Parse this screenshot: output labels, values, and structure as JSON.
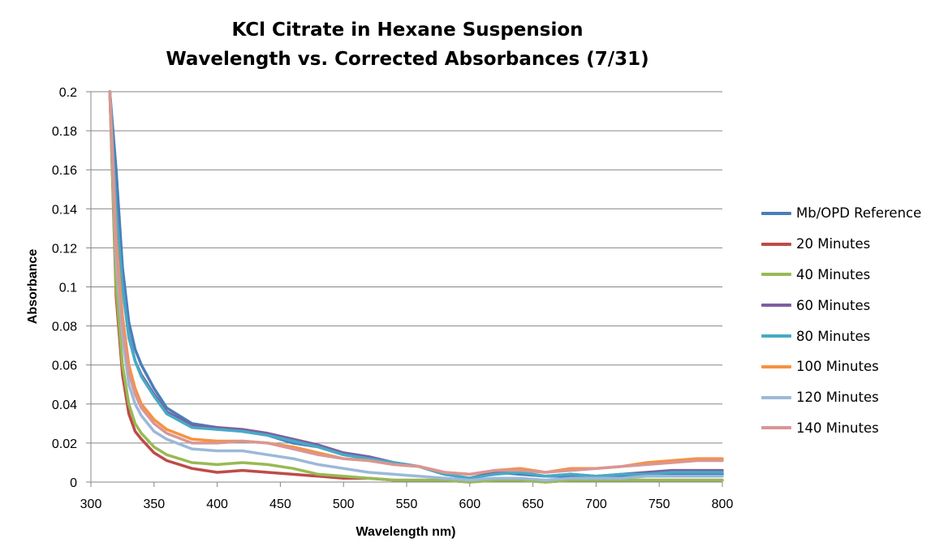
{
  "chart_data": {
    "type": "line",
    "title": "KCl Citrate in Hexane Suspension",
    "subtitle": "Wavelength vs. Corrected Absorbances (7/31)",
    "xlabel": "Wavelength nm)",
    "ylabel": "Absorbance",
    "xlim": [
      300,
      800
    ],
    "ylim": [
      0,
      0.2
    ],
    "xticks": [
      "300",
      "350",
      "400",
      "450",
      "500",
      "550",
      "600",
      "650",
      "700",
      "750",
      "800"
    ],
    "yticks": [
      "0",
      "0.02",
      "0.04",
      "0.06",
      "0.08",
      "0.1",
      "0.12",
      "0.14",
      "0.16",
      "0.18",
      "0.2"
    ],
    "grid": "horizontal",
    "legend": "right",
    "x": [
      315,
      320,
      325,
      330,
      335,
      340,
      350,
      360,
      380,
      400,
      420,
      440,
      460,
      480,
      500,
      520,
      540,
      560,
      580,
      600,
      620,
      640,
      660,
      680,
      700,
      720,
      740,
      760,
      780,
      800
    ],
    "series": [
      {
        "name": "Mb/OPD Reference",
        "color": "#4a7ebb",
        "values": [
          0.2,
          0.16,
          0.11,
          0.082,
          0.068,
          0.06,
          0.048,
          0.038,
          0.03,
          0.028,
          0.026,
          0.024,
          0.02,
          0.018,
          0.014,
          0.012,
          0.01,
          0.008,
          0.004,
          0.002,
          0.005,
          0.004,
          0.003,
          0.003,
          0.002,
          0.003,
          0.004,
          0.004,
          0.004,
          0.004
        ]
      },
      {
        "name": "20 Minutes",
        "color": "#be4b48",
        "values": [
          0.2,
          0.095,
          0.055,
          0.035,
          0.026,
          0.022,
          0.015,
          0.011,
          0.007,
          0.005,
          0.006,
          0.005,
          0.004,
          0.003,
          0.002,
          0.002,
          0.001,
          0.001,
          0.001,
          0.0,
          0.001,
          0.001,
          0.0,
          0.001,
          0.001,
          0.001,
          0.001,
          0.001,
          0.001,
          0.001
        ]
      },
      {
        "name": "40 Minutes",
        "color": "#98b954",
        "values": [
          0.2,
          0.1,
          0.06,
          0.04,
          0.03,
          0.025,
          0.018,
          0.014,
          0.01,
          0.009,
          0.01,
          0.009,
          0.007,
          0.004,
          0.003,
          0.002,
          0.001,
          0.001,
          0.001,
          0.0,
          0.001,
          0.001,
          0.0,
          0.001,
          0.001,
          0.001,
          0.001,
          0.001,
          0.001,
          0.001
        ]
      },
      {
        "name": "60 Minutes",
        "color": "#7d60a0",
        "values": [
          0.2,
          0.14,
          0.1,
          0.075,
          0.062,
          0.055,
          0.045,
          0.036,
          0.029,
          0.028,
          0.027,
          0.025,
          0.022,
          0.019,
          0.015,
          0.013,
          0.01,
          0.008,
          0.004,
          0.002,
          0.005,
          0.005,
          0.003,
          0.004,
          0.003,
          0.004,
          0.005,
          0.006,
          0.006,
          0.006
        ]
      },
      {
        "name": "80 Minutes",
        "color": "#46aac5",
        "values": [
          0.2,
          0.14,
          0.1,
          0.074,
          0.062,
          0.054,
          0.044,
          0.035,
          0.028,
          0.027,
          0.026,
          0.024,
          0.021,
          0.018,
          0.014,
          0.012,
          0.01,
          0.008,
          0.004,
          0.002,
          0.004,
          0.005,
          0.003,
          0.004,
          0.003,
          0.004,
          0.004,
          0.005,
          0.005,
          0.005
        ]
      },
      {
        "name": "100 Minutes",
        "color": "#f69240",
        "values": [
          0.2,
          0.125,
          0.085,
          0.06,
          0.048,
          0.04,
          0.032,
          0.027,
          0.022,
          0.021,
          0.021,
          0.02,
          0.018,
          0.015,
          0.012,
          0.011,
          0.009,
          0.008,
          0.005,
          0.004,
          0.006,
          0.007,
          0.005,
          0.007,
          0.007,
          0.008,
          0.01,
          0.011,
          0.012,
          0.012
        ]
      },
      {
        "name": "120 Minutes",
        "color": "#9bb9d9",
        "values": [
          0.2,
          0.115,
          0.075,
          0.05,
          0.04,
          0.034,
          0.026,
          0.022,
          0.017,
          0.016,
          0.016,
          0.014,
          0.012,
          0.009,
          0.007,
          0.005,
          0.004,
          0.003,
          0.002,
          0.001,
          0.002,
          0.002,
          0.001,
          0.002,
          0.002,
          0.002,
          0.003,
          0.003,
          0.003,
          0.003
        ]
      },
      {
        "name": "140 Minutes",
        "color": "#d99694",
        "values": [
          0.2,
          0.12,
          0.08,
          0.056,
          0.045,
          0.038,
          0.03,
          0.025,
          0.02,
          0.02,
          0.021,
          0.02,
          0.017,
          0.014,
          0.012,
          0.011,
          0.009,
          0.008,
          0.005,
          0.004,
          0.006,
          0.006,
          0.005,
          0.006,
          0.007,
          0.008,
          0.009,
          0.01,
          0.011,
          0.011
        ]
      }
    ]
  }
}
